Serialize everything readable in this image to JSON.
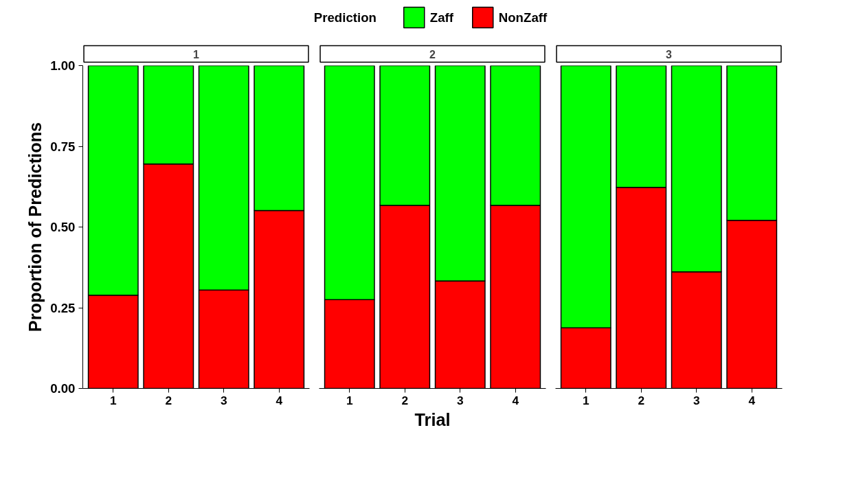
{
  "chart_data": [
    {
      "type": "bar",
      "title": "1",
      "categories": [
        "1",
        "2",
        "3",
        "4"
      ],
      "stacked": true,
      "ylabel": "Proportion of Predictions",
      "ylim": [
        0,
        1
      ],
      "yticks": [
        {
          "value": 0,
          "label": "0.00"
        },
        {
          "value": 0.25,
          "label": "0.25"
        },
        {
          "value": 0.5,
          "label": "0.50"
        },
        {
          "value": 0.75,
          "label": "0.75"
        },
        {
          "value": 1,
          "label": "1.00"
        }
      ],
      "grid": false,
      "series": [
        {
          "color": "#ff0000",
          "values": [
            0.289,
            0.695,
            0.305,
            0.551
          ]
        },
        {
          "color": "#00ff00",
          "values": [
            0.711,
            0.305,
            0.695,
            0.449
          ]
        }
      ]
    },
    {
      "type": "bar",
      "title": "2",
      "categories": [
        "1",
        "2",
        "3",
        "4"
      ],
      "stacked": true,
      "xlabel": "Trial",
      "legend_title": "Prediction",
      "legend": "top",
      "ylim": [
        0,
        1
      ],
      "tick_labels": "x",
      "grid": false,
      "series": [
        {
          "name": "NonZaff",
          "color": "#ff0000",
          "values": [
            0.275,
            0.567,
            0.333,
            0.567
          ]
        },
        {
          "name": "Zaff",
          "color": "#00ff00",
          "values": [
            0.725,
            0.433,
            0.667,
            0.433
          ]
        }
      ]
    },
    {
      "type": "bar",
      "title": "3",
      "categories": [
        "1",
        "2",
        "3",
        "4"
      ],
      "stacked": true,
      "ylim": [
        0,
        1
      ],
      "tick_labels": "x",
      "grid": false,
      "series": [
        {
          "color": "#ff0000",
          "values": [
            0.188,
            0.623,
            0.361,
            0.521
          ]
        },
        {
          "color": "#00ff00",
          "values": [
            0.812,
            0.377,
            0.639,
            0.479
          ]
        }
      ]
    }
  ]
}
